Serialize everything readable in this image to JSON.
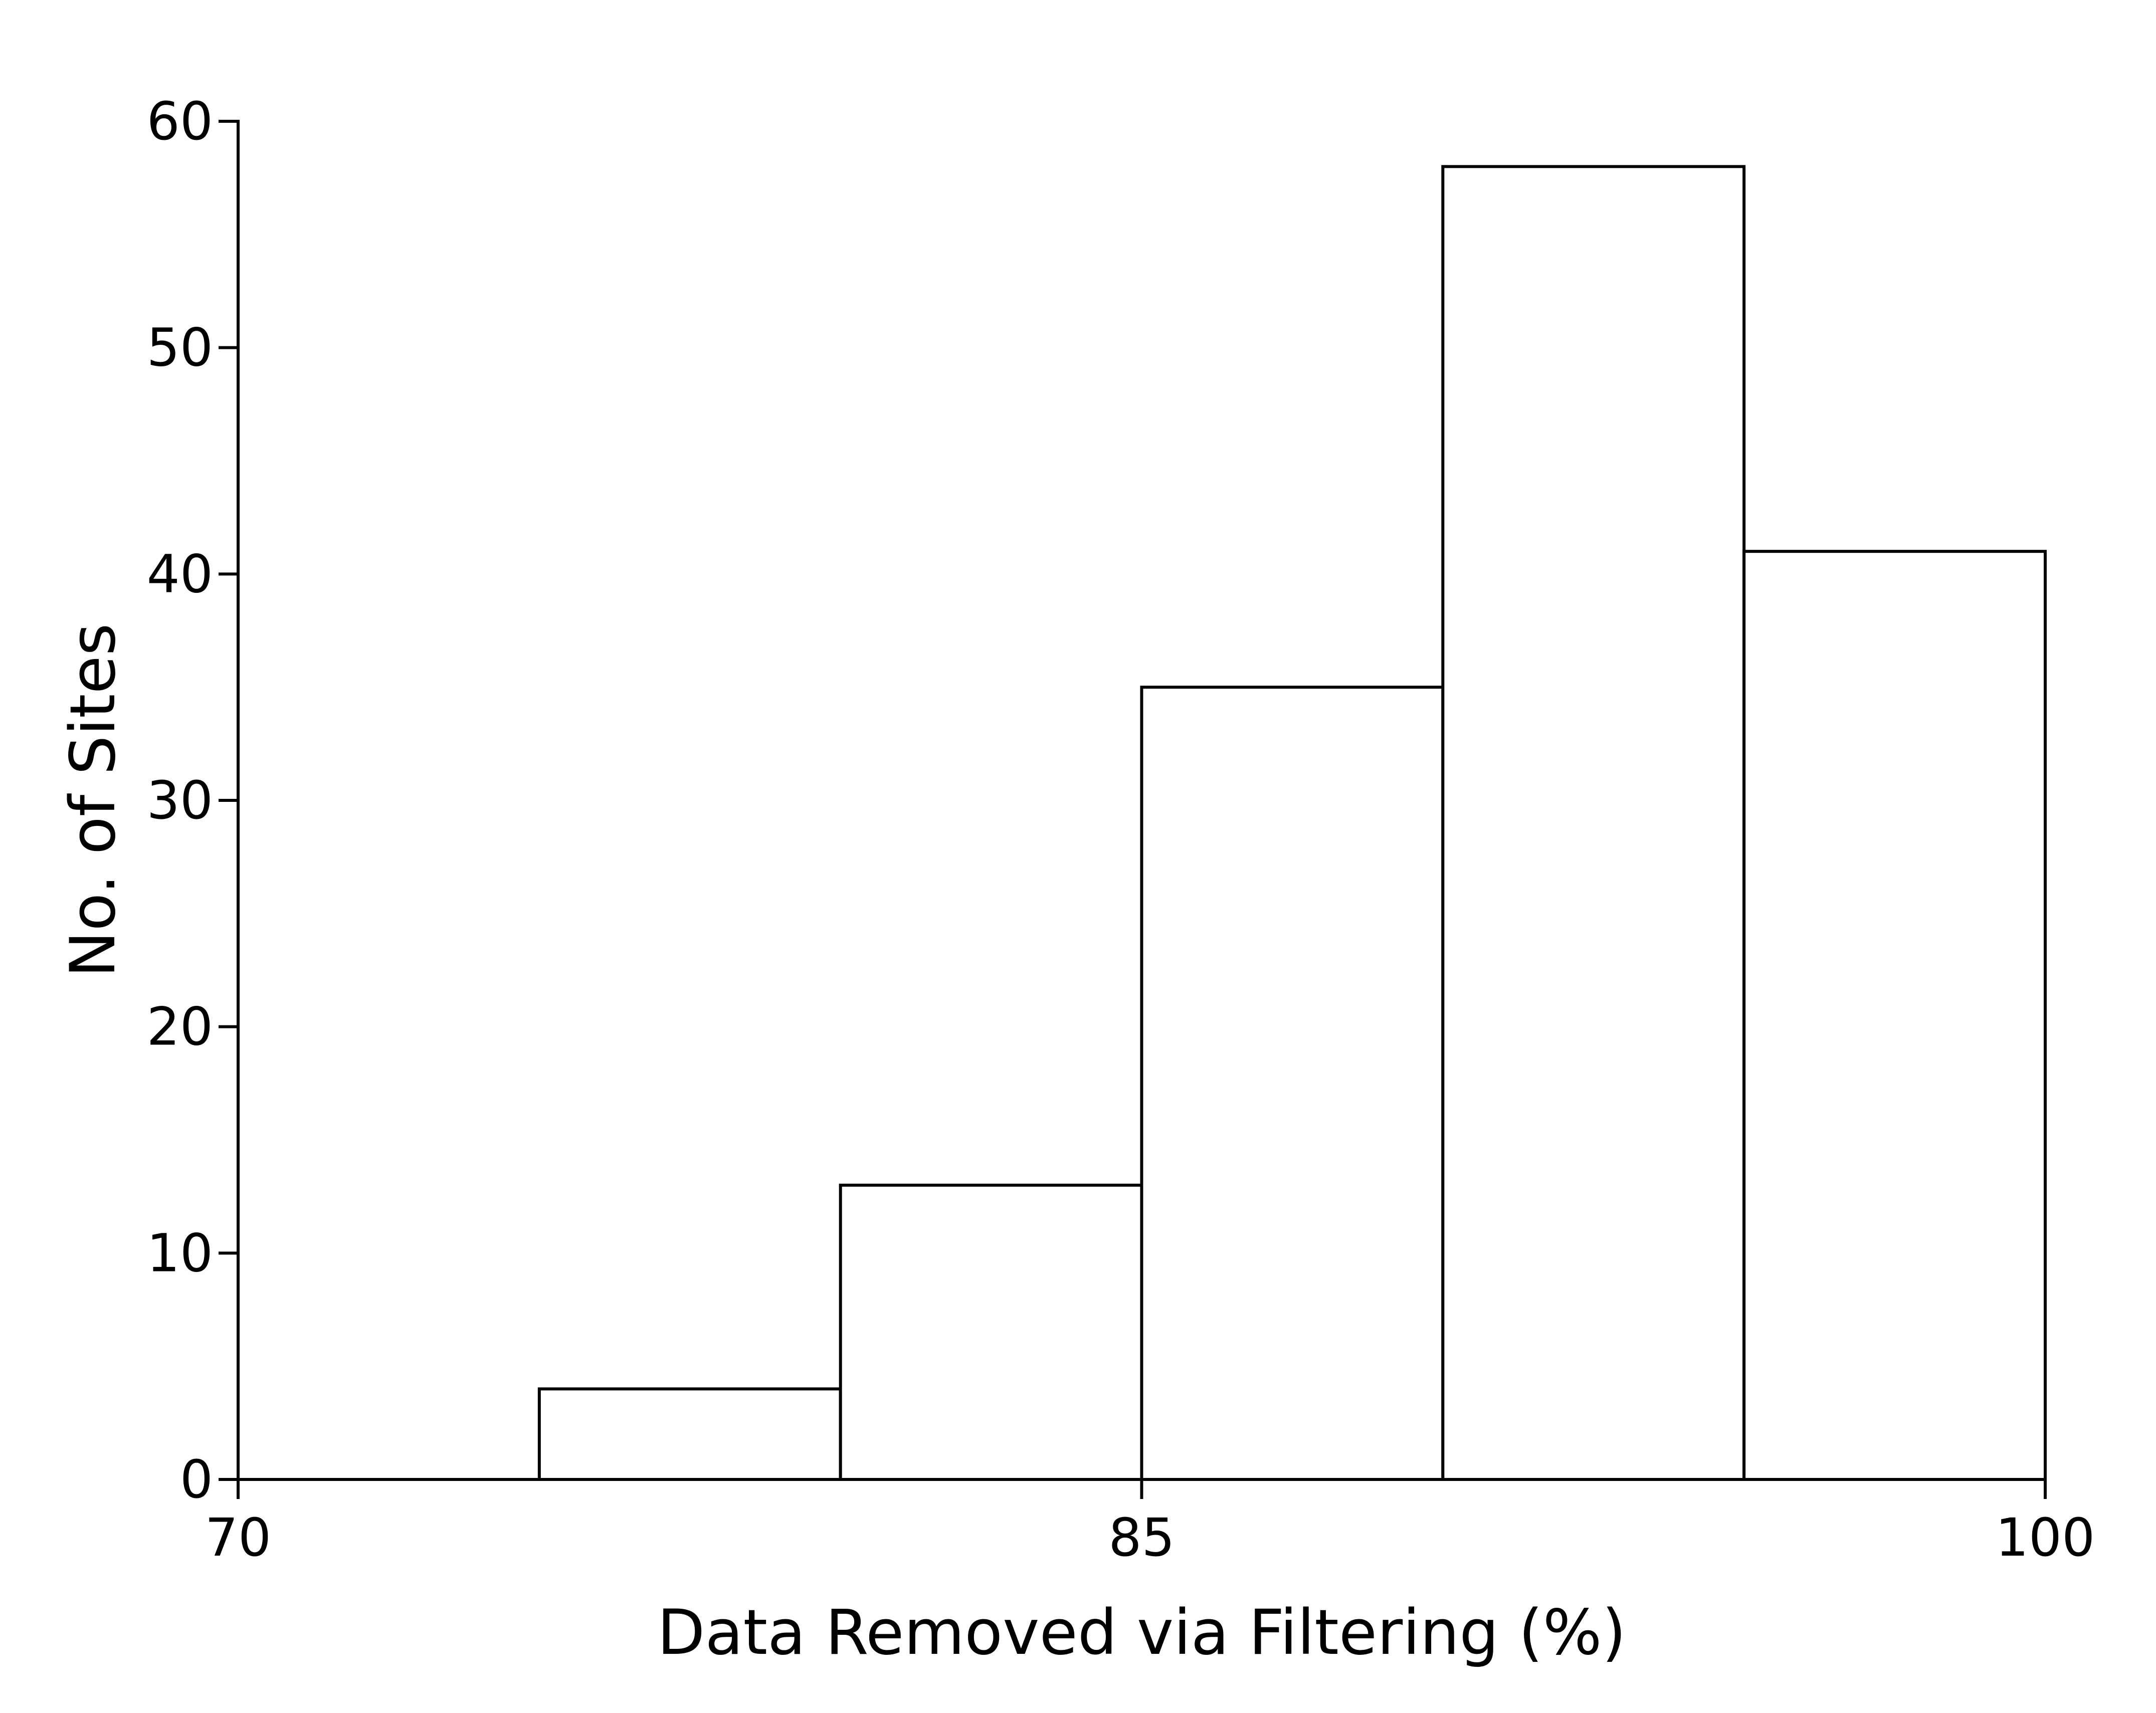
{
  "chart_data": {
    "type": "histogram",
    "title": "",
    "xlabel": "Data Removed via Filtering (%)",
    "ylabel": "No. of Sites",
    "xlim": [
      70,
      100
    ],
    "ylim": [
      0,
      60
    ],
    "xticks": [
      70,
      85,
      100
    ],
    "yticks": [
      0,
      10,
      20,
      30,
      40,
      50,
      60
    ],
    "bins": [
      {
        "start": 75,
        "end": 80,
        "count": 4
      },
      {
        "start": 80,
        "end": 85,
        "count": 13
      },
      {
        "start": 85,
        "end": 90,
        "count": 35
      },
      {
        "start": 90,
        "end": 95,
        "count": 58
      },
      {
        "start": 95,
        "end": 100,
        "count": 41
      }
    ],
    "bar_fill": "#ffffff",
    "bar_edge": "#000000",
    "grid": false,
    "legend": "none"
  }
}
